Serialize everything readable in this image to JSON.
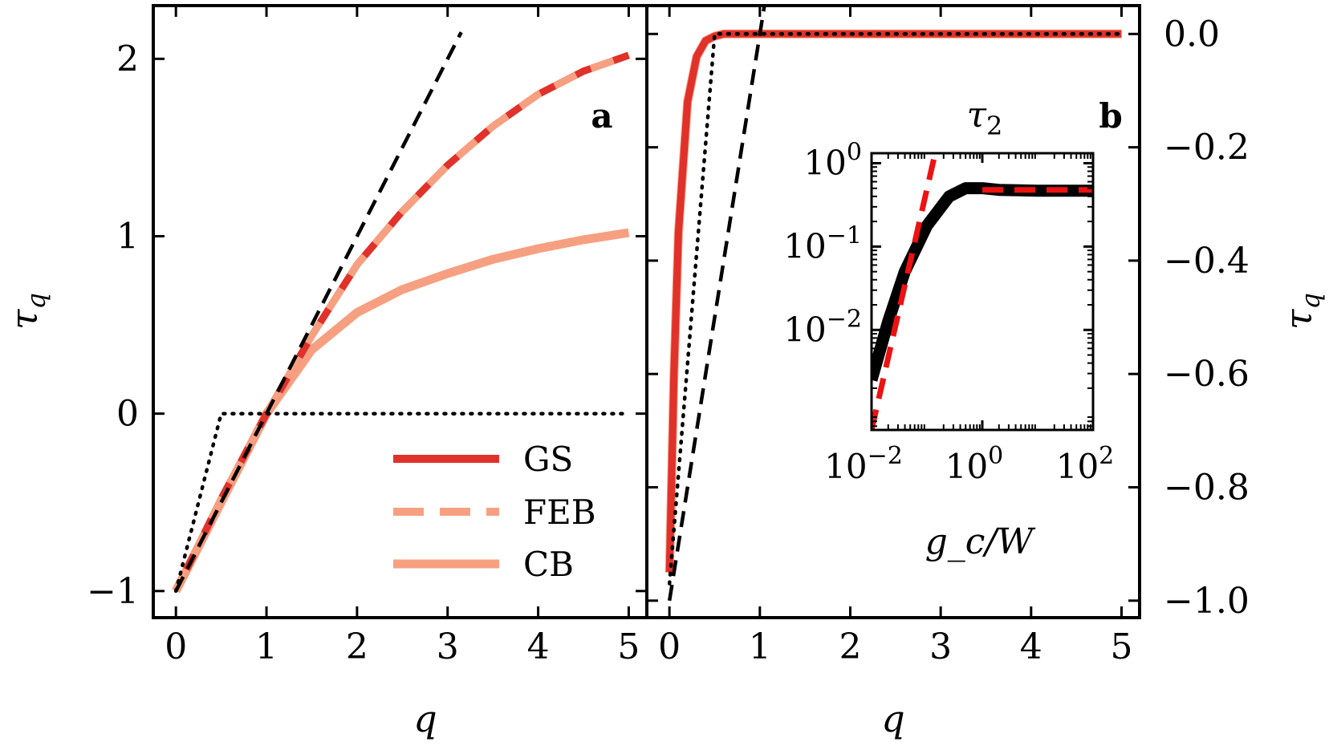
{
  "colors": {
    "GS": "#e0312b",
    "FEB": "#f7a081",
    "CB": "#f7a081",
    "bound": "#000000",
    "inset_line": "#000000",
    "inset_dash": "#ee1111"
  },
  "chart_data": [
    {
      "id": "a",
      "type": "line",
      "panel_label": "a",
      "xlabel": "q",
      "ylabel": "τ_q",
      "xlim": [
        -0.25,
        5.2
      ],
      "ylim": [
        -1.15,
        2.3
      ],
      "xticks": [
        0,
        1,
        2,
        3,
        4,
        5
      ],
      "xtick_labels": [
        "0",
        "1",
        "2",
        "3",
        "4",
        "5"
      ],
      "yticks": [
        -1,
        0,
        1,
        2
      ],
      "ytick_labels": [
        "−1",
        "0",
        "1",
        "2"
      ],
      "legend": {
        "position": "lower-right",
        "entries": [
          {
            "label": "GS",
            "style": "solid",
            "color_key": "GS"
          },
          {
            "label": "FEB",
            "style": "dashed",
            "color_key": "FEB"
          },
          {
            "label": "CB",
            "style": "solid",
            "color_key": "CB"
          }
        ]
      },
      "series": [
        {
          "name": "GS",
          "style": "solid",
          "color_key": "GS",
          "x": [
            0,
            0.5,
            1,
            1.5,
            2,
            2.5,
            3,
            3.5,
            4,
            4.5,
            5
          ],
          "y": [
            -1,
            -0.48,
            0,
            0.44,
            0.84,
            1.14,
            1.4,
            1.62,
            1.8,
            1.93,
            2.02
          ]
        },
        {
          "name": "FEB",
          "style": "dashed",
          "color_key": "FEB",
          "x": [
            0,
            0.5,
            1,
            1.5,
            2,
            2.5,
            3,
            3.5,
            4,
            4.5,
            5
          ],
          "y": [
            -1,
            -0.48,
            0,
            0.44,
            0.84,
            1.14,
            1.4,
            1.62,
            1.8,
            1.93,
            2.02
          ]
        },
        {
          "name": "CB",
          "style": "solid",
          "color_key": "CB",
          "x": [
            0,
            0.5,
            1,
            1.5,
            2,
            2.5,
            3,
            3.5,
            4,
            4.5,
            5
          ],
          "y": [
            -1,
            -0.5,
            0,
            0.36,
            0.57,
            0.7,
            0.79,
            0.87,
            0.93,
            0.98,
            1.02
          ]
        },
        {
          "name": "bound-dashed",
          "style": "dashed",
          "color_key": "bound",
          "x": [
            0,
            3.15
          ],
          "y": [
            -1,
            2.15
          ]
        },
        {
          "name": "bound-dotted",
          "style": "dotted",
          "color_key": "bound",
          "x": [
            0,
            0.5,
            5
          ],
          "y": [
            -1,
            0,
            0
          ]
        }
      ]
    },
    {
      "id": "b",
      "type": "line",
      "panel_label": "b",
      "xlabel": "q",
      "ylabel": "τ_q",
      "ylabel_side": "right",
      "xlim": [
        -0.25,
        5.2
      ],
      "ylim": [
        -1.03,
        0.05
      ],
      "xticks": [
        0,
        1,
        2,
        3,
        4,
        5
      ],
      "xtick_labels": [
        "0",
        "1",
        "2",
        "3",
        "4",
        "5"
      ],
      "yticks": [
        0,
        -0.2,
        -0.4,
        -0.6,
        -0.8,
        -1.0
      ],
      "ytick_labels": [
        "0.0",
        "−0.2",
        "−0.4",
        "−0.6",
        "−0.8",
        "−1.0"
      ],
      "series": [
        {
          "name": "GS",
          "style": "solid",
          "color_key": "GS",
          "x": [
            0,
            0.05,
            0.1,
            0.2,
            0.3,
            0.4,
            0.5,
            0.6,
            0.8,
            1,
            5
          ],
          "y": [
            -0.95,
            -0.6,
            -0.35,
            -0.12,
            -0.04,
            -0.012,
            -0.004,
            0,
            0,
            0,
            0
          ]
        },
        {
          "name": "CB",
          "style": "solid",
          "color_key": "CB",
          "x": [
            0,
            0.05,
            0.1,
            0.2,
            0.3,
            0.4,
            0.5,
            0.6,
            0.8,
            1,
            5
          ],
          "y": [
            -0.95,
            -0.6,
            -0.35,
            -0.12,
            -0.04,
            -0.012,
            -0.004,
            0,
            0,
            0,
            0
          ]
        },
        {
          "name": "bound-dotted",
          "style": "dotted",
          "color_key": "bound",
          "x": [
            0,
            0.5,
            5
          ],
          "y": [
            -0.97,
            0,
            0
          ]
        },
        {
          "name": "bound-dashed",
          "style": "dashed",
          "color_key": "bound",
          "x": [
            0,
            1.05
          ],
          "y": [
            -1,
            0.05
          ]
        }
      ],
      "inset": {
        "title": "τ_2",
        "xlabel": "g_c/W",
        "scale": "log-log",
        "xlim_log10": [
          -2,
          2
        ],
        "ylim_log10": [
          -3.2,
          0.12
        ],
        "xtick_exponents": [
          "−2",
          "0",
          "2"
        ],
        "xtick_values_log10": [
          -2,
          0,
          2
        ],
        "ytick_exponents": [
          "0",
          "−1",
          "−2"
        ],
        "ytick_values_log10": [
          0,
          -1,
          -2
        ],
        "tick_base": "10",
        "series": [
          {
            "name": "numerical",
            "style": "solid",
            "color_key": "inset_line",
            "x_log10": [
              -2,
              -1.7,
              -1.4,
              -1,
              -0.6,
              -0.3,
              0,
              0.3,
              1,
              2
            ],
            "y_log10": [
              -2.6,
              -1.9,
              -1.3,
              -0.75,
              -0.4,
              -0.3,
              -0.3,
              -0.32,
              -0.33,
              -0.33
            ]
          },
          {
            "name": "asymptote-low",
            "style": "dashed",
            "color_key": "inset_dash",
            "x_log10": [
              -2,
              -0.85
            ],
            "y_log10": [
              -3.2,
              0.12
            ]
          },
          {
            "name": "asymptote-high",
            "style": "dashed",
            "color_key": "inset_dash",
            "x_log10": [
              0,
              2
            ],
            "y_log10": [
              -0.32,
              -0.32
            ]
          }
        ]
      }
    }
  ]
}
